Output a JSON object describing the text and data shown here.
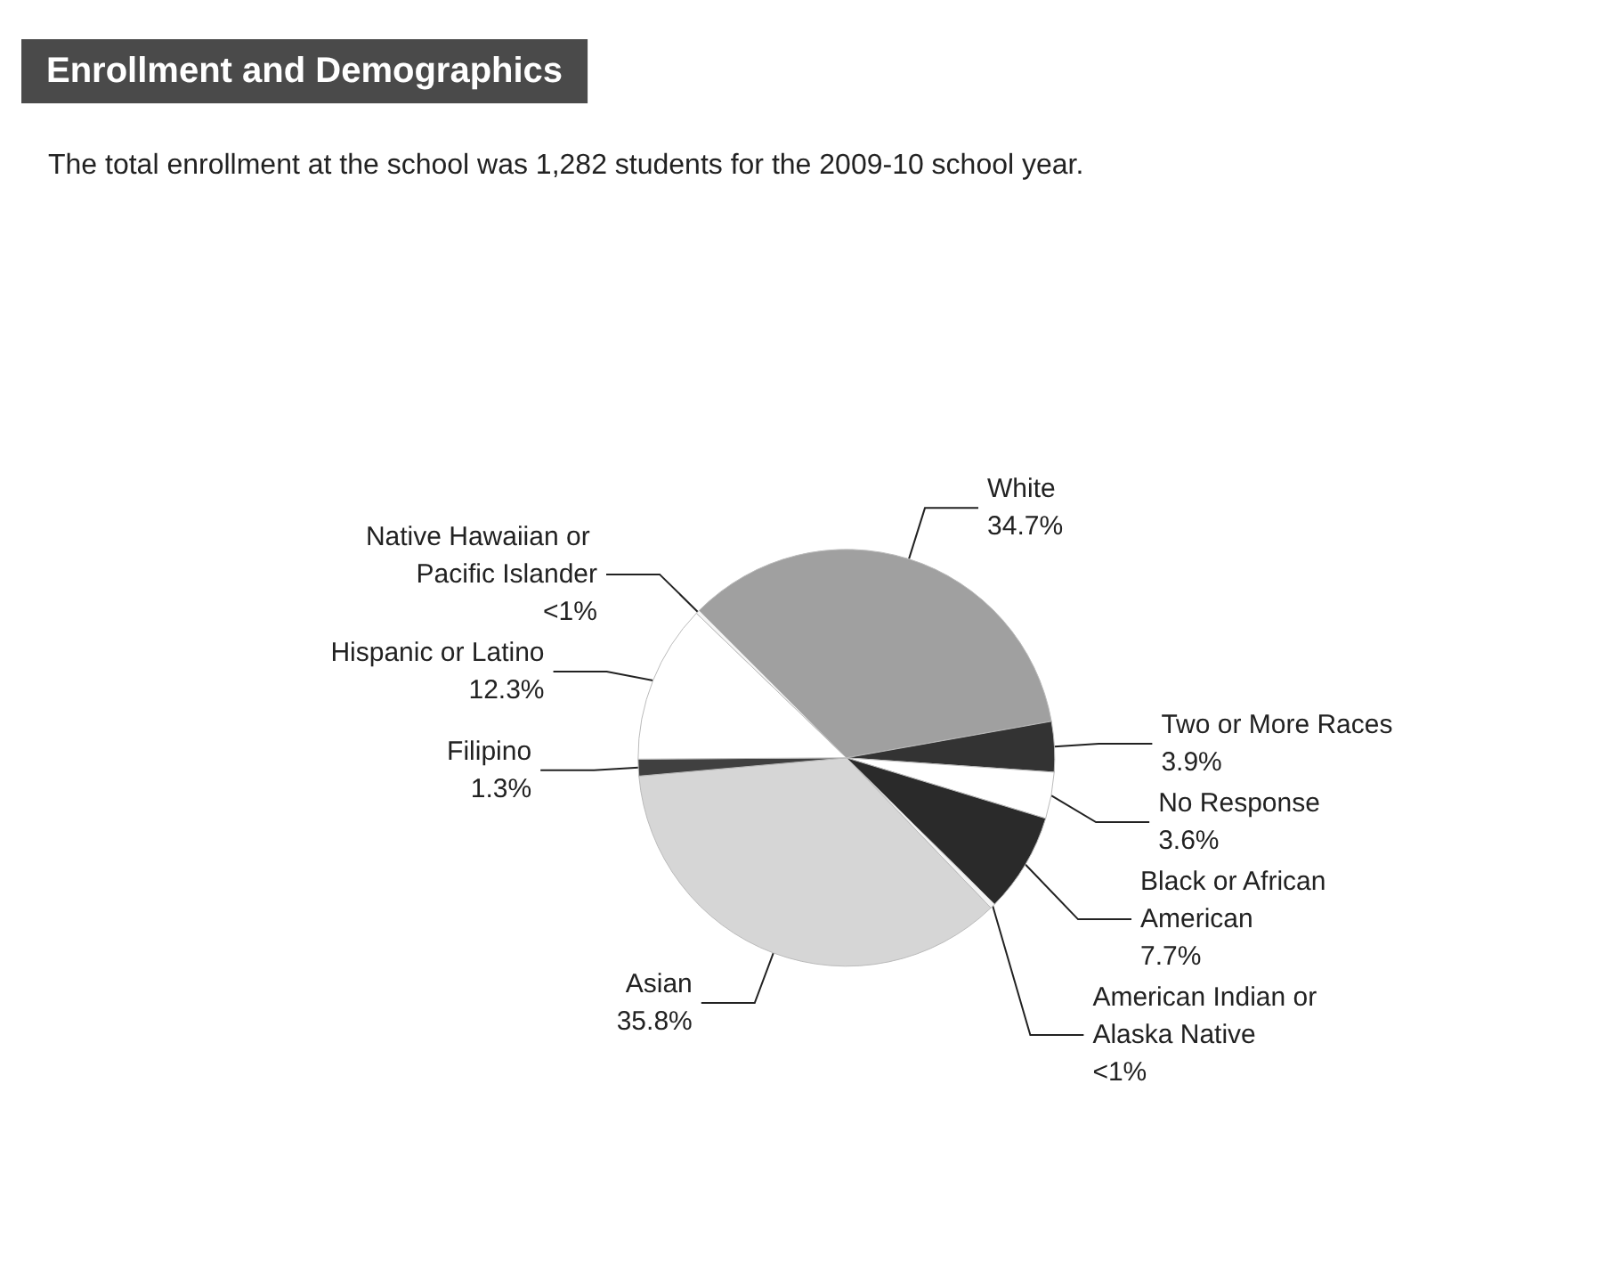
{
  "chart_data": {
    "type": "pie",
    "title": "Enrollment and Demographics",
    "subtitle": "The total enrollment at the school was 1,282 students for the 2009-10 school year.",
    "categories": [
      "White",
      "Two or More Races",
      "No Response",
      "Black or African American",
      "American Indian or Alaska Native",
      "Asian",
      "Filipino",
      "Hispanic or Latino",
      "Native Hawaiian or Pacific Islander"
    ],
    "values": [
      34.7,
      3.9,
      3.6,
      7.7,
      0.4,
      35.8,
      1.3,
      12.3,
      0.3
    ],
    "value_labels": [
      "34.7%",
      "3.9%",
      "3.6%",
      "7.7%",
      "<1%",
      "35.8%",
      "1.3%",
      "12.3%",
      "<1%"
    ],
    "colors": [
      "#a0a0a0",
      "#333333",
      "#ffffff",
      "#2a2a2a",
      "#f4f4f4",
      "#d6d6d6",
      "#404040",
      "#ffffff",
      "#f4f4f4"
    ],
    "legend": false
  }
}
